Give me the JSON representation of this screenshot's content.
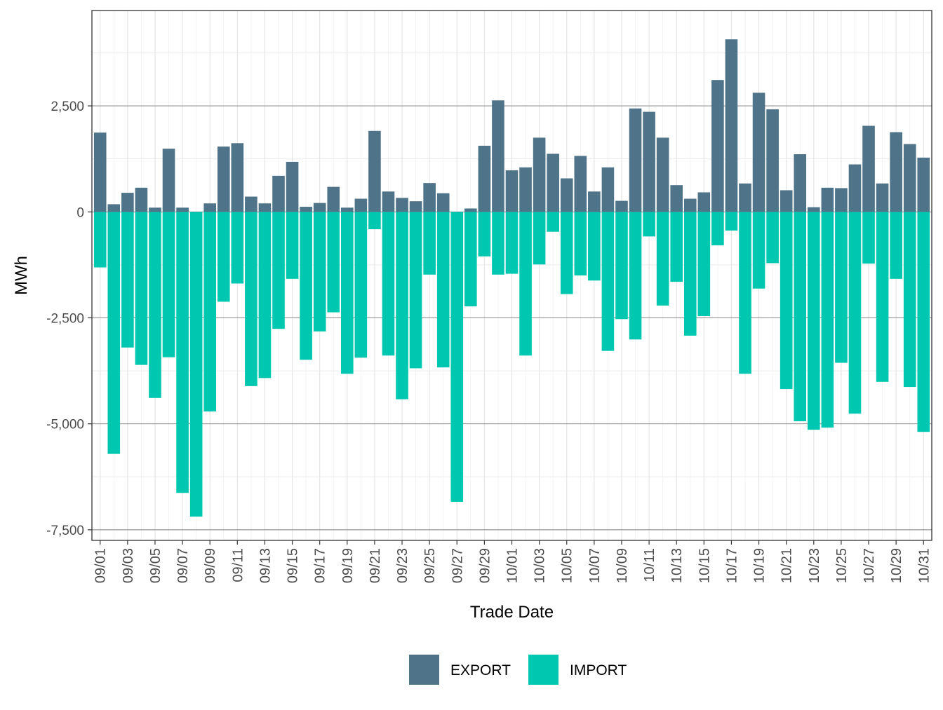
{
  "colors": {
    "export": "#4f7489",
    "import": "#00c8b0"
  },
  "chart_data": {
    "type": "bar",
    "stacked": true,
    "xlabel": "Trade Date",
    "ylabel": "MWh",
    "ylim": [
      -7750,
      4750
    ],
    "yticks": [
      -7500,
      -5000,
      -2500,
      0,
      2500
    ],
    "ytick_labels": [
      "-7,500",
      "-5,000",
      "-2,500",
      "0",
      "2,500"
    ],
    "grid": true,
    "legend_position": "bottom",
    "x": [
      "09/01",
      "09/02",
      "09/03",
      "09/04",
      "09/05",
      "09/06",
      "09/07",
      "09/08",
      "09/09",
      "09/10",
      "09/11",
      "09/12",
      "09/13",
      "09/14",
      "09/15",
      "09/16",
      "09/17",
      "09/18",
      "09/19",
      "09/20",
      "09/21",
      "09/22",
      "09/23",
      "09/24",
      "09/25",
      "09/26",
      "09/27",
      "09/28",
      "09/29",
      "09/30",
      "10/01",
      "10/02",
      "10/03",
      "10/04",
      "10/05",
      "10/06",
      "10/07",
      "10/08",
      "10/09",
      "10/10",
      "10/11",
      "10/12",
      "10/13",
      "10/14",
      "10/15",
      "10/16",
      "10/17",
      "10/18",
      "10/19",
      "10/20",
      "10/21",
      "10/22",
      "10/23",
      "10/24",
      "10/25",
      "10/26",
      "10/27",
      "10/28",
      "10/29",
      "10/30",
      "10/31"
    ],
    "x_tick_labels": [
      "09/01",
      "09/03",
      "09/05",
      "09/07",
      "09/09",
      "09/11",
      "09/13",
      "09/15",
      "09/17",
      "09/19",
      "09/21",
      "09/23",
      "09/25",
      "09/27",
      "09/29",
      "10/01",
      "10/03",
      "10/05",
      "10/07",
      "10/09",
      "10/11",
      "10/13",
      "10/15",
      "10/17",
      "10/19",
      "10/21",
      "10/23",
      "10/25",
      "10/27",
      "10/29",
      "10/31"
    ],
    "series": [
      {
        "name": "EXPORT",
        "values": [
          1870,
          180,
          450,
          570,
          100,
          1490,
          100,
          0,
          200,
          1540,
          1620,
          360,
          200,
          850,
          1180,
          120,
          210,
          590,
          100,
          310,
          1910,
          480,
          330,
          250,
          680,
          440,
          0,
          80,
          1560,
          2630,
          980,
          1050,
          1750,
          1370,
          790,
          1320,
          480,
          1050,
          260,
          2440,
          2360,
          1750,
          630,
          310,
          460,
          3110,
          4070,
          670,
          2810,
          2420,
          510,
          1360,
          110,
          570,
          560,
          1120,
          2030,
          670,
          1880,
          1600,
          1280
        ]
      },
      {
        "name": "IMPORT",
        "values": [
          -1310,
          -5710,
          -3200,
          -3610,
          -4390,
          -3430,
          -6630,
          -7190,
          -4710,
          -2120,
          -1690,
          -4110,
          -3920,
          -2760,
          -1580,
          -3490,
          -2820,
          -2370,
          -3820,
          -3440,
          -410,
          -3390,
          -4420,
          -3690,
          -1480,
          -3670,
          -6840,
          -2230,
          -1050,
          -1480,
          -1460,
          -3390,
          -1240,
          -470,
          -1940,
          -1500,
          -1620,
          -3280,
          -2530,
          -3010,
          -580,
          -2210,
          -1650,
          -2920,
          -2460,
          -790,
          -440,
          -3820,
          -1810,
          -1210,
          -4180,
          -4940,
          -5140,
          -5090,
          -3560,
          -4760,
          -1220,
          -4010,
          -1580,
          -4130,
          -5190
        ]
      }
    ]
  }
}
